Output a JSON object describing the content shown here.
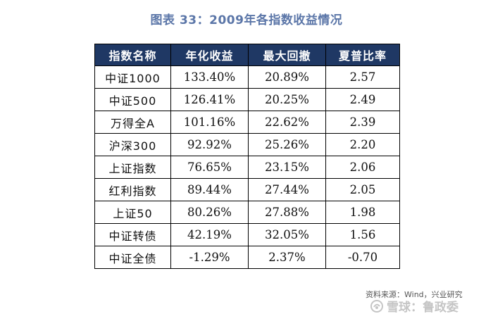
{
  "title": "图表 33：2009年各指数收益情况",
  "table": {
    "headers": [
      "指数名称",
      "年化收益",
      "最大回撤",
      "夏普比率"
    ],
    "rows": [
      [
        "中证1000",
        "133.40%",
        "20.89%",
        "2.57"
      ],
      [
        "中证500",
        "126.41%",
        "20.25%",
        "2.49"
      ],
      [
        "万得全A",
        "101.16%",
        "22.62%",
        "2.39"
      ],
      [
        "沪深300",
        "92.92%",
        "25.26%",
        "2.20"
      ],
      [
        "上证指数",
        "76.65%",
        "23.15%",
        "2.06"
      ],
      [
        "红利指数",
        "89.44%",
        "27.44%",
        "2.05"
      ],
      [
        "上证50",
        "80.26%",
        "27.88%",
        "1.98"
      ],
      [
        "中证转债",
        "42.19%",
        "32.05%",
        "1.56"
      ],
      [
        "中证全债",
        "-1.29%",
        "2.37%",
        "-0.70"
      ]
    ]
  },
  "source": "资料来源：Wind，兴业研究",
  "watermark": "雪球：鲁政委",
  "colors": {
    "title": "#5b76a8",
    "header_bg": "#1f3864",
    "header_text": "#ffffff",
    "border": "#000000"
  },
  "watermark_icon": "snowball-logo-icon"
}
